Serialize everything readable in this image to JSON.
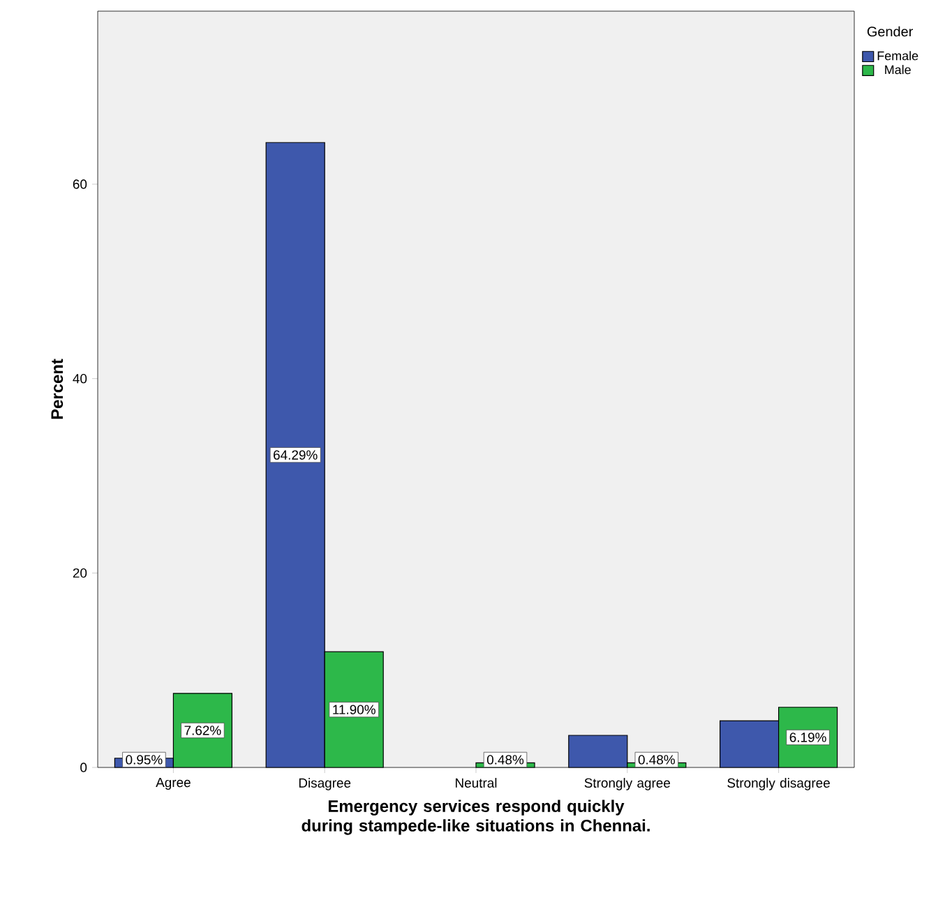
{
  "chart_data": {
    "type": "bar",
    "xlabel": "Emergency services respond quickly during stampede-like situations in Chennai.",
    "ylabel": "Percent",
    "legend_title": "Gender",
    "legend": "top right",
    "grid": false,
    "categories": [
      "Agree",
      "Disagree",
      "Neutral",
      "Strongly agree",
      "Strongly disagree"
    ],
    "ylim": [
      0,
      77.8
    ],
    "yticks": [
      0,
      20,
      40,
      60
    ],
    "series": [
      {
        "name": "Female",
        "color": "#3e58ac",
        "values": [
          0.95,
          64.29,
          null,
          3.3,
          4.8
        ],
        "value_labels": [
          "0.95%",
          "64.29%",
          null,
          null,
          null
        ]
      },
      {
        "name": "Male",
        "color": "#2db84a",
        "values": [
          7.62,
          11.9,
          0.48,
          0.48,
          6.19
        ],
        "value_labels": [
          "7.62%",
          "11.90%",
          "0.48%",
          "0.48%",
          "6.19%"
        ]
      }
    ]
  }
}
